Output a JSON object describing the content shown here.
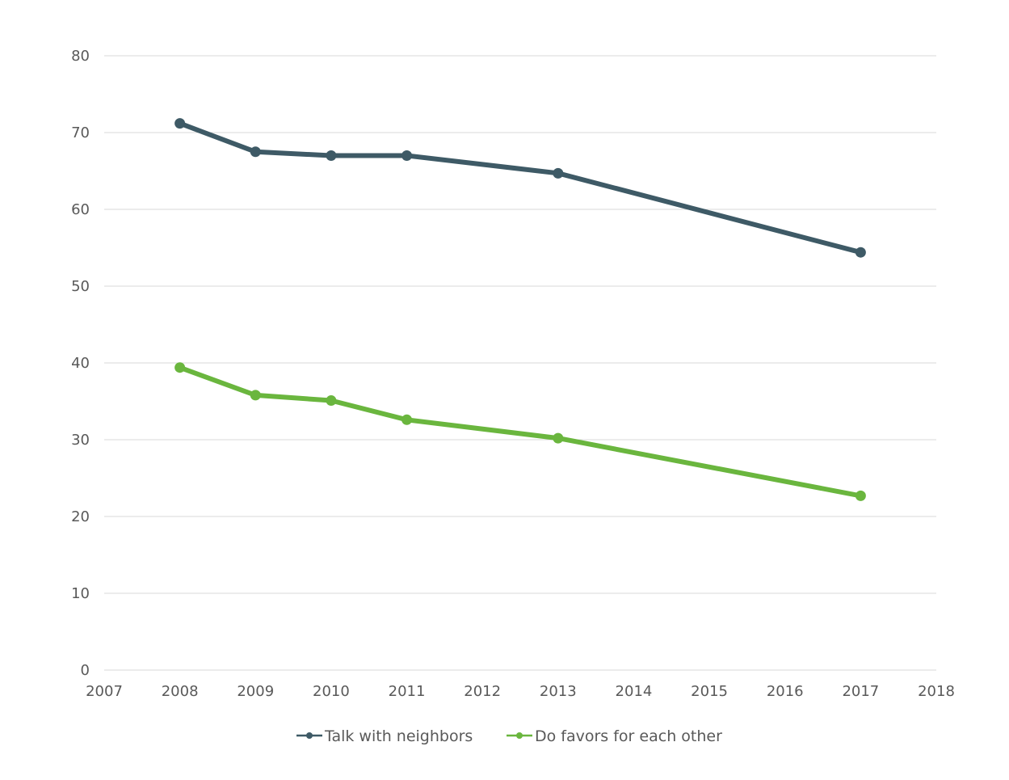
{
  "chart_data": {
    "type": "line",
    "title": "",
    "xlabel": "",
    "ylabel": "",
    "xlim": [
      2007,
      2018
    ],
    "ylim": [
      0,
      80
    ],
    "x_ticks": [
      2007,
      2008,
      2009,
      2010,
      2011,
      2012,
      2013,
      2014,
      2015,
      2016,
      2017,
      2018
    ],
    "y_ticks": [
      0,
      10,
      20,
      30,
      40,
      50,
      60,
      70,
      80
    ],
    "grid": "horizontal",
    "legend_position": "bottom-center",
    "series": [
      {
        "name": "Talk with neighbors",
        "color": "#3e5a66",
        "marker": "circle",
        "x": [
          2008,
          2009,
          2010,
          2011,
          2013,
          2017
        ],
        "values": [
          71.2,
          67.5,
          67.0,
          67.0,
          64.7,
          54.4
        ]
      },
      {
        "name": "Do favors for each other",
        "color": "#6ab63e",
        "marker": "circle",
        "x": [
          2008,
          2009,
          2010,
          2011,
          2013,
          2017
        ],
        "values": [
          39.4,
          35.8,
          35.1,
          32.6,
          30.2,
          22.7
        ]
      }
    ]
  }
}
